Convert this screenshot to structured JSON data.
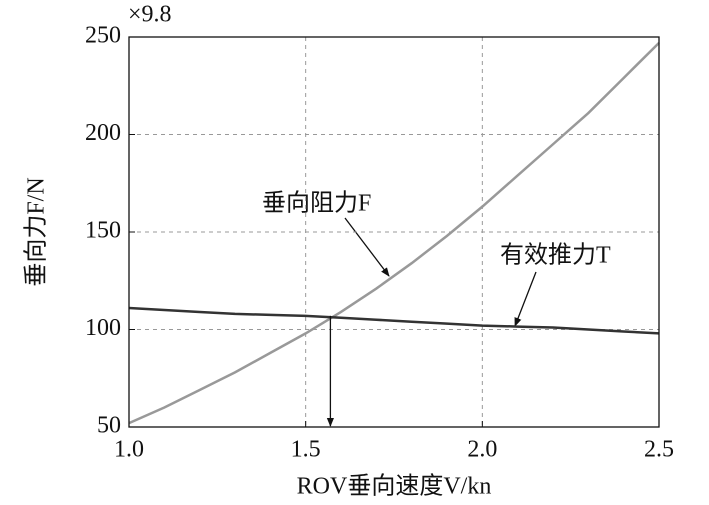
{
  "chart_data": {
    "type": "line",
    "scale_note": "×9.8",
    "x_label": "ROV垂向速度V/kn",
    "y_label": "垂向力F/N",
    "x": [
      1.0,
      1.1,
      1.2,
      1.3,
      1.4,
      1.5,
      1.6,
      1.7,
      1.8,
      1.9,
      2.0,
      2.1,
      2.2,
      2.3,
      2.4,
      2.5
    ],
    "series": [
      {
        "name": "垂向阻力F",
        "color": "#999999",
        "values": [
          52,
          60,
          69,
          78,
          88,
          98,
          109,
          121,
          134,
          148,
          163,
          179,
          195,
          211,
          229,
          247
        ]
      },
      {
        "name": "有效推力T",
        "color": "#333333",
        "values": [
          111,
          110,
          109,
          108,
          107.5,
          107,
          106,
          105,
          104,
          103,
          102,
          101.5,
          101,
          100,
          99,
          98
        ]
      }
    ],
    "intersection": {
      "x": 1.57,
      "y": 107
    },
    "xlim": [
      1.0,
      2.5
    ],
    "ylim": [
      50,
      250
    ],
    "xticks": [
      {
        "value": 1,
        "label": "1.0"
      },
      1.5,
      {
        "value": 2,
        "label": "2.0"
      },
      2.5
    ],
    "yticks": [
      50,
      100,
      150,
      200,
      250
    ],
    "grid": true
  }
}
